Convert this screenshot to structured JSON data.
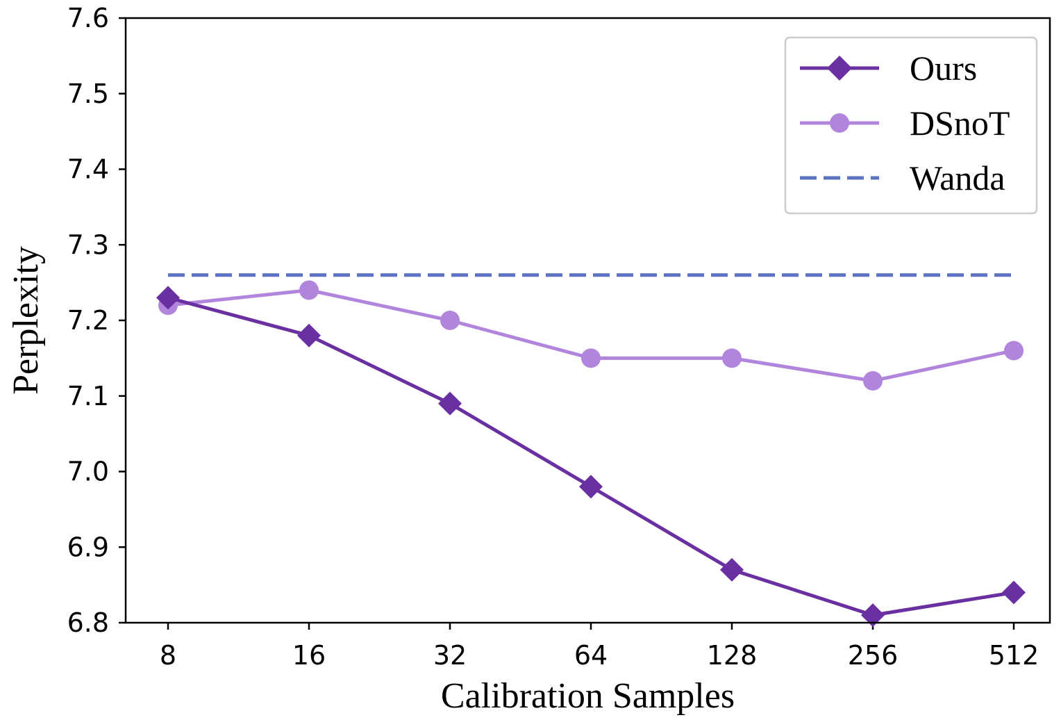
{
  "chart_data": {
    "type": "line",
    "title": "",
    "xlabel": "Calibration Samples",
    "ylabel": "Perplexity",
    "categories": [
      "8",
      "16",
      "32",
      "64",
      "128",
      "256",
      "512"
    ],
    "ylim": [
      6.8,
      7.6
    ],
    "yticks": [
      "6.8",
      "6.9",
      "7.0",
      "7.1",
      "7.2",
      "7.3",
      "7.4",
      "7.5",
      "7.6"
    ],
    "grid": false,
    "legend_position": "top-right",
    "series": [
      {
        "name": "Ours",
        "values": [
          7.23,
          7.18,
          7.09,
          6.98,
          6.87,
          6.81,
          6.84
        ],
        "color": "#6a2fa0",
        "marker": "diamond",
        "line": "solid"
      },
      {
        "name": "DSnoT",
        "values": [
          7.22,
          7.24,
          7.2,
          7.15,
          7.15,
          7.12,
          7.16
        ],
        "color": "#b185dc",
        "marker": "circle",
        "line": "solid"
      },
      {
        "name": "Wanda",
        "values": [
          7.26,
          7.26,
          7.26,
          7.26,
          7.26,
          7.26,
          7.26
        ],
        "color": "#5b73c2",
        "marker": "none",
        "line": "dashed"
      }
    ]
  }
}
